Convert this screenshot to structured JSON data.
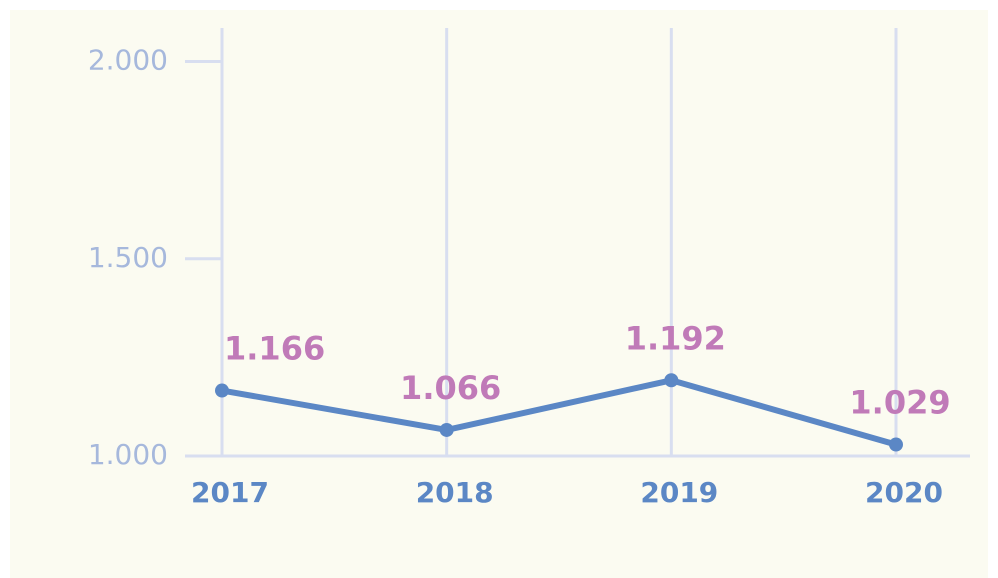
{
  "chart_data": {
    "type": "line",
    "categories": [
      "2017",
      "2018",
      "2019",
      "2020"
    ],
    "series": [
      {
        "name": null,
        "color": "#5b87c5",
        "values": [
          1166,
          1066,
          1192,
          1029
        ],
        "value_labels": [
          "1.166",
          "1.066",
          "1.192",
          "1.029"
        ]
      }
    ],
    "ylim": [
      1000,
      2085
    ],
    "yticks": [
      {
        "value": 1000,
        "label": "1.000"
      },
      {
        "value": 1500,
        "label": "1.500"
      },
      {
        "value": 2000,
        "label": "2.000"
      }
    ],
    "grid": true
  }
}
